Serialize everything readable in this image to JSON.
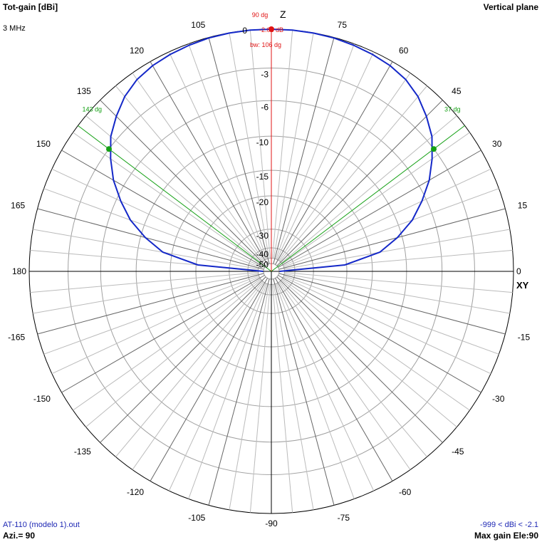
{
  "header": {
    "title_left": "Tot-gain [dBi]",
    "frequency": "3 MHz",
    "title_right": "Vertical plane"
  },
  "footer": {
    "file": "AT-110 (modelo 1).out",
    "azimuth": "Azi.= 90",
    "range": "-999 < dBi < -2.1",
    "max_gain": "Max gain Ele:90"
  },
  "axes": {
    "z_label": "Z",
    "xy_label": "XY"
  },
  "colors": {
    "pattern": "#1428c8",
    "max_marker": "#e01414",
    "beamwidth": "#14a014",
    "grid": "#a0a0a0",
    "axis": "#000000"
  },
  "chart_data": {
    "type": "line",
    "coordinate_system": "polar",
    "angle_ticks": [
      0,
      15,
      30,
      45,
      60,
      75,
      90,
      105,
      120,
      135,
      150,
      165,
      180,
      -165,
      -150,
      -135,
      -120,
      -105,
      -90,
      -75,
      -60,
      -45,
      -30,
      -15
    ],
    "radial_ticks": [
      0,
      -3,
      -6,
      -10,
      -15,
      -20,
      -30,
      -40,
      -50
    ],
    "radial_scale": "ARRL log (dB)",
    "max_gain_dbi": -2.08,
    "max_gain_elevation_deg": 90,
    "beamwidth_deg": 106,
    "half_power_angles_deg": [
      37,
      143
    ],
    "annotations": {
      "max_angle": "90 dg",
      "max_gain": "-2.08 dB",
      "beamwidth": "bw: 106 dg",
      "hp_right": "37 dg",
      "hp_left": "143 dg"
    },
    "series": [
      {
        "elevation_deg": [
          0,
          5,
          10,
          15,
          20,
          25,
          30,
          35,
          40,
          45,
          50,
          55,
          60,
          65,
          70,
          75,
          80,
          85,
          90,
          95,
          100,
          105,
          110,
          115,
          120,
          125,
          130,
          135,
          140,
          145,
          150,
          155,
          160,
          165,
          170,
          175,
          180
        ],
        "gain_dbi": [
          -60,
          -22.5,
          -15.6,
          -12.7,
          -10.3,
          -8.55,
          -6.95,
          -5.69,
          -4.55,
          -3.78,
          -3.1,
          -2.65,
          -2.41,
          -2.28,
          -2.19,
          -2.12,
          -2.09,
          -2.08,
          -2.08,
          -2.08,
          -2.09,
          -2.12,
          -2.19,
          -2.28,
          -2.41,
          -2.65,
          -3.1,
          -3.78,
          -4.55,
          -5.69,
          -6.95,
          -8.55,
          -10.3,
          -12.7,
          -15.6,
          -22.5,
          -60
        ]
      }
    ]
  }
}
